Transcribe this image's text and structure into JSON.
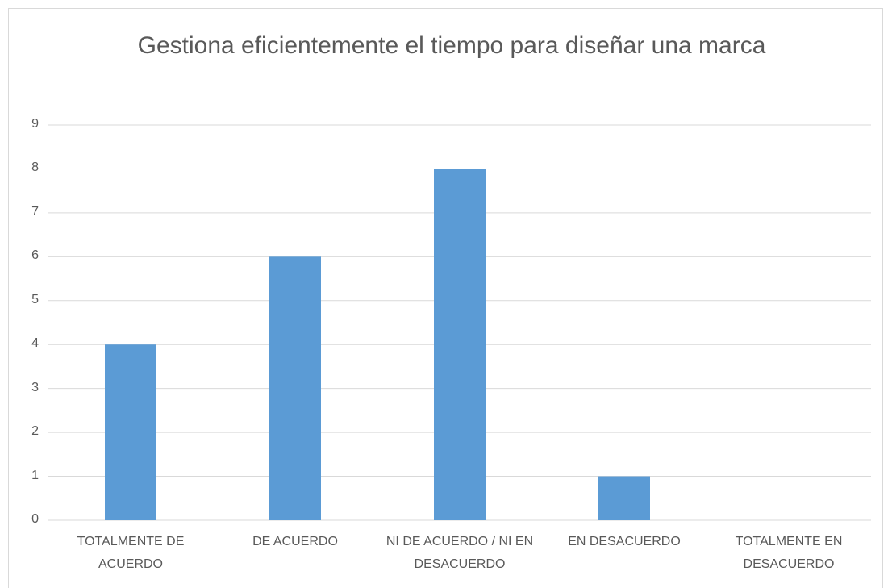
{
  "chart_data": {
    "type": "bar",
    "title": "Gestiona eficientemente el tiempo para diseñar una marca",
    "categories": [
      "TOTALMENTE DE ACUERDO",
      "DE ACUERDO",
      "NI DE ACUERDO / NI EN DESACUERDO",
      "EN DESACUERDO",
      "TOTALMENTE EN DESACUERDO"
    ],
    "values": [
      4,
      6,
      8,
      1,
      0
    ],
    "color": "#5b9bd5",
    "ylim": [
      0,
      9
    ],
    "yticks": [
      0,
      1,
      2,
      3,
      4,
      5,
      6,
      7,
      8,
      9
    ],
    "grid": true
  }
}
